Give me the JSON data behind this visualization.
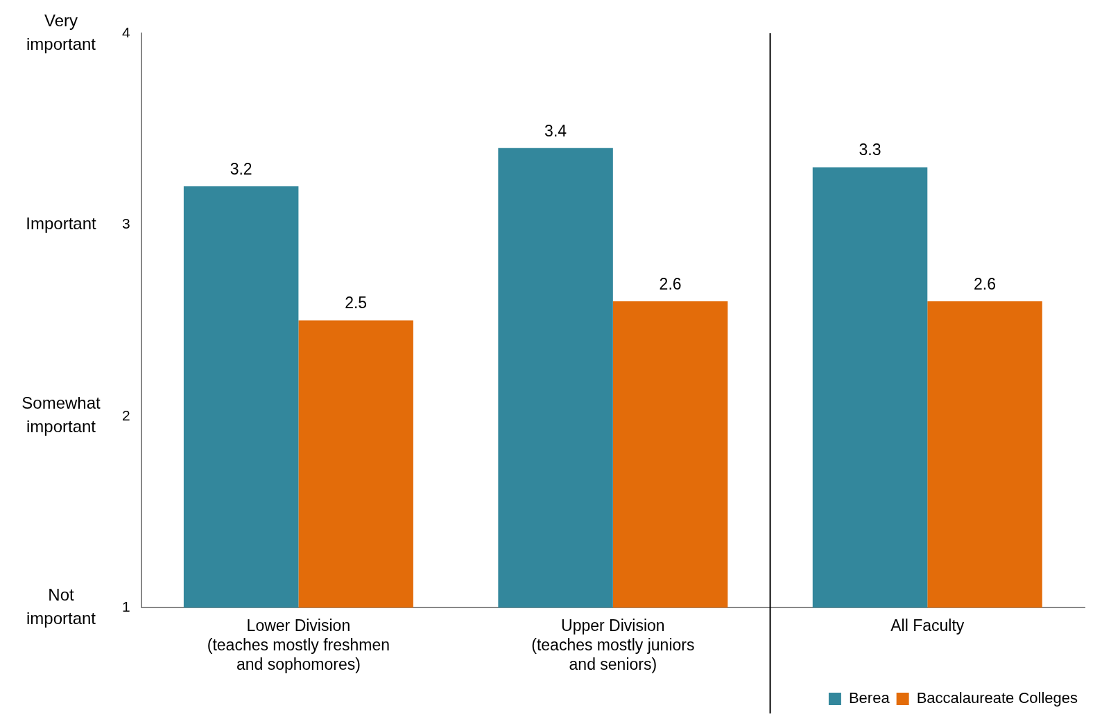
{
  "chart_data": {
    "type": "bar",
    "categories": [
      "Lower Division\n(teaches mostly freshmen\nand sophomores)",
      "Upper Division\n(teaches mostly juniors\nand seniors)",
      "All Faculty"
    ],
    "series": [
      {
        "name": "Berea",
        "color": "#33879c",
        "values": [
          3.2,
          3.4,
          3.3
        ]
      },
      {
        "name": "Baccalaureate Colleges",
        "color": "#e36c0a",
        "values": [
          2.5,
          2.6,
          2.6
        ]
      }
    ],
    "ylim": [
      1,
      4
    ],
    "yticks": [
      1,
      2,
      3,
      4
    ],
    "grid": false,
    "legend": "bottom right",
    "data_labels": true,
    "annotations": [
      "Very\nimportant",
      "Important",
      "Somewhat\nimportant",
      "Not\nimportant"
    ]
  }
}
